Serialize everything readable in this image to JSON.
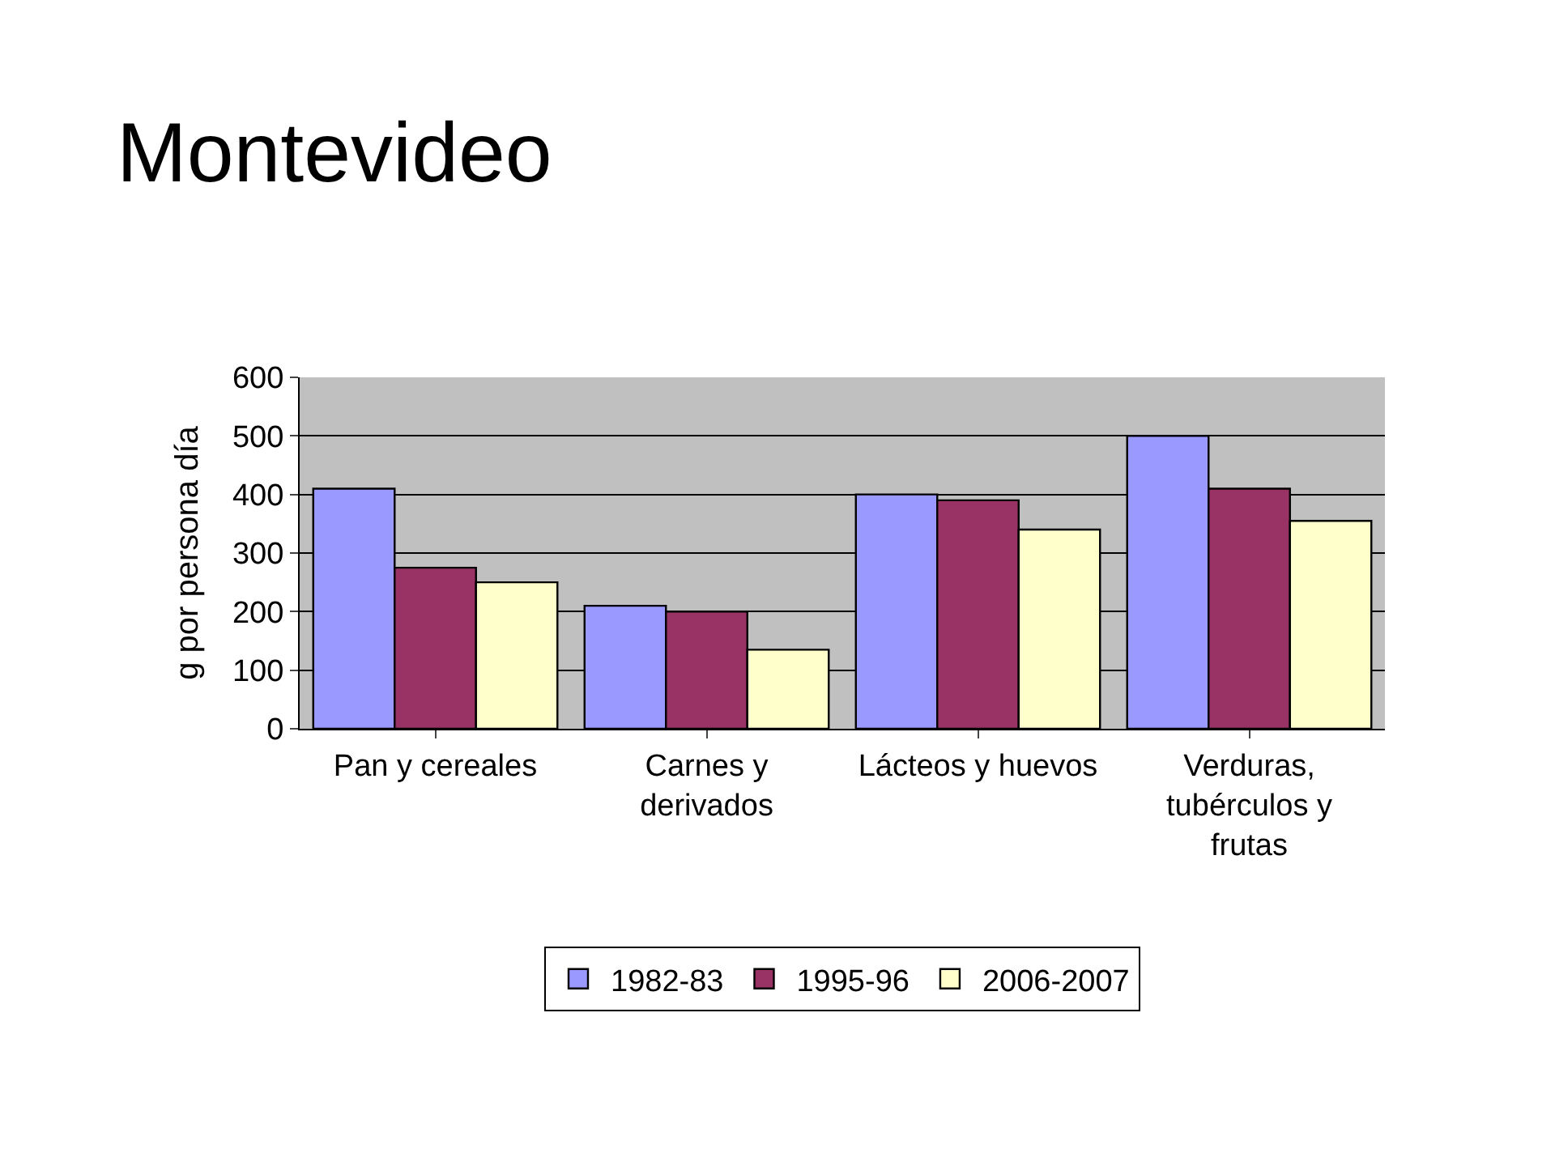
{
  "chart_data": {
    "type": "bar",
    "title": "Montevideo",
    "ylabel": "g por persona día",
    "categories": [
      "Pan y cereales",
      "Carnes y derivados",
      "Lácteos y huevos",
      "Verduras, tubérculos y frutas"
    ],
    "series": [
      {
        "name": "1982-83",
        "color": "#9999ff",
        "values": [
          410,
          210,
          400,
          500
        ]
      },
      {
        "name": "1995-96",
        "color": "#993366",
        "values": [
          275,
          200,
          390,
          410
        ]
      },
      {
        "name": "2006-2007",
        "color": "#ffffcc",
        "values": [
          250,
          135,
          340,
          355
        ]
      }
    ],
    "ylim": [
      0,
      600
    ],
    "yticks": [
      0,
      100,
      200,
      300,
      400,
      500,
      600
    ],
    "grid": "y",
    "legend": "bottom"
  }
}
